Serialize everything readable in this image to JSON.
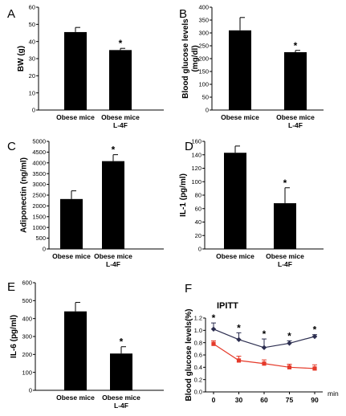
{
  "chart_data": [
    {
      "type": "bar",
      "panel": "A",
      "ylabel": "BW (g)",
      "ylim": [
        0,
        60
      ],
      "yticks": [
        0,
        10,
        20,
        30,
        40,
        50,
        60
      ],
      "categories": [
        "Obese mice",
        "Obese mice\nL-4F"
      ],
      "values": [
        45.5,
        35
      ],
      "errors": [
        2.7,
        1
      ],
      "significance": [
        "",
        "*"
      ]
    },
    {
      "type": "bar",
      "panel": "B",
      "ylabel": "Blood glucose levels\n(mg/dl)",
      "ylim": [
        0,
        400
      ],
      "yticks": [
        0,
        50,
        100,
        150,
        200,
        250,
        300,
        350,
        400
      ],
      "categories": [
        "Obese mice",
        "Obese mice\nL-4F"
      ],
      "values": [
        310,
        225
      ],
      "errors": [
        50,
        7
      ],
      "significance": [
        "",
        "*"
      ]
    },
    {
      "type": "bar",
      "panel": "C",
      "ylabel": "Adiponectin (ng/ml)",
      "ylim": [
        0,
        5000
      ],
      "yticks": [
        0,
        500,
        1000,
        1500,
        2000,
        2500,
        3000,
        3500,
        4000,
        4500,
        5000
      ],
      "categories": [
        "Obese mice",
        "Obese mice\nL-4F"
      ],
      "values": [
        2320,
        4080
      ],
      "errors": [
        380,
        300
      ],
      "significance": [
        "",
        "*"
      ]
    },
    {
      "type": "bar",
      "panel": "D",
      "ylabel": "IL-1 (pg/ml)",
      "ylim": [
        0,
        160
      ],
      "yticks": [
        0,
        20,
        40,
        60,
        80,
        100,
        120,
        140,
        160
      ],
      "categories": [
        "Obese mice",
        "Obese mice\nL-4F"
      ],
      "values": [
        143,
        68
      ],
      "errors": [
        10,
        23
      ],
      "significance": [
        "",
        "*"
      ]
    },
    {
      "type": "bar",
      "panel": "E",
      "ylabel": "IL-6 (pg/ml)",
      "ylim": [
        0,
        600
      ],
      "yticks": [
        0,
        100,
        200,
        300,
        400,
        500,
        600
      ],
      "categories": [
        "Obese mice",
        "Obese mice\nL-4F"
      ],
      "values": [
        440,
        205
      ],
      "errors": [
        50,
        38
      ],
      "significance": [
        "",
        "*"
      ]
    },
    {
      "type": "line",
      "panel": "F",
      "title": "IPITT",
      "ylabel": "Blood glucose levels(%)",
      "xunit": "min",
      "ylim": [
        0,
        1.2
      ],
      "yticks": [
        0,
        0.2,
        0.4,
        0.6,
        0.8,
        1.0,
        1.2
      ],
      "x": [
        0,
        30,
        60,
        75,
        90
      ],
      "series": [
        {
          "values": [
            1.02,
            0.85,
            0.72,
            0.79,
            0.9
          ],
          "errors": [
            0.1,
            0.11,
            0.14,
            0.04,
            0.03
          ],
          "color": "#2b2d4f"
        },
        {
          "values": [
            0.78,
            0.51,
            0.46,
            0.4,
            0.38
          ],
          "errors": [
            0.05,
            0.07,
            0.06,
            0.05,
            0.06
          ],
          "color": "#e53a2a"
        }
      ],
      "significance": [
        "*",
        "*",
        "*",
        "*",
        "*"
      ]
    }
  ]
}
